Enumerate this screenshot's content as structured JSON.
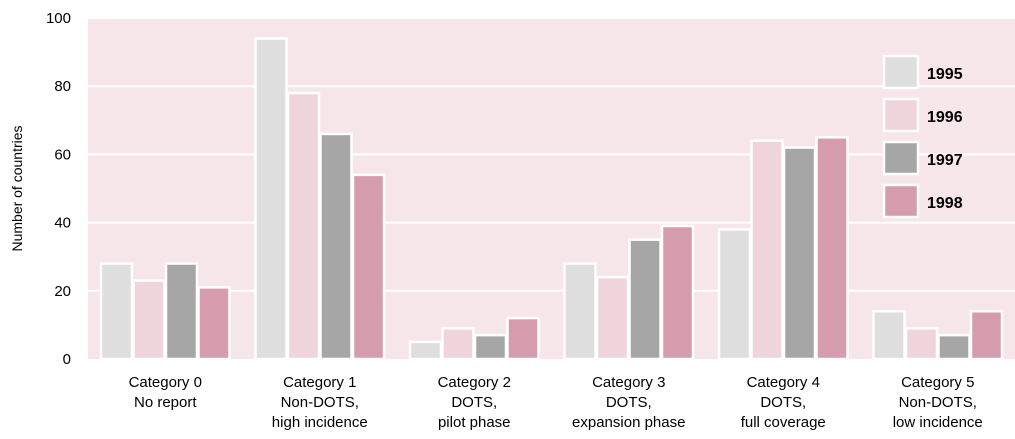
{
  "chart_data": {
    "type": "bar",
    "ylabel": "Number of countries",
    "ylim": [
      0,
      100
    ],
    "yticks": [
      0,
      20,
      40,
      60,
      80,
      100
    ],
    "grid": true,
    "legend_position": "right",
    "categories": [
      [
        "Category 0",
        "No report"
      ],
      [
        "Category 1",
        "Non-DOTS,",
        "high incidence"
      ],
      [
        "Category 2",
        "DOTS,",
        "pilot phase"
      ],
      [
        "Category 3",
        "DOTS,",
        "expansion phase"
      ],
      [
        "Category 4",
        "DOTS,",
        "full coverage"
      ],
      [
        "Category 5",
        "Non-DOTS,",
        "low incidence"
      ]
    ],
    "series": [
      {
        "name": "1995",
        "color": "#dedede",
        "values": [
          28,
          94,
          5,
          28,
          38,
          14
        ]
      },
      {
        "name": "1996",
        "color": "#efd4dc",
        "values": [
          23,
          78,
          9,
          24,
          64,
          9
        ]
      },
      {
        "name": "1997",
        "color": "#a6a6a6",
        "values": [
          28,
          66,
          7,
          35,
          62,
          7
        ]
      },
      {
        "name": "1998",
        "color": "#d49cad",
        "values": [
          21,
          54,
          12,
          39,
          65,
          14
        ]
      }
    ],
    "colors": {
      "plot_background": "#f6e6ea",
      "gridline": "#ffffff"
    }
  }
}
